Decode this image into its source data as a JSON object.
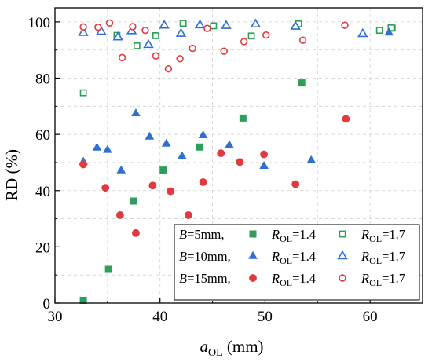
{
  "chart_data": {
    "type": "scatter",
    "xlabel": {
      "main": "a",
      "sub": "OL",
      "unit": " (mm)"
    },
    "ylabel": "RD (%)",
    "xlim": [
      30,
      65
    ],
    "ylim": [
      0,
      105
    ],
    "x_ticks": [
      30,
      40,
      50,
      60
    ],
    "y_ticks": [
      0,
      20,
      40,
      60,
      80,
      100
    ],
    "grid": true,
    "legend_placement": "bottom-right",
    "series": [
      {
        "name": "B=5mm, R_OL=1.4",
        "legend_group": "B=5mm,",
        "legend_label": {
          "main": "R",
          "sub": "OL",
          "value": "=1.4"
        },
        "marker": "square",
        "filled": true,
        "color": "#2e9e5b",
        "x": [
          32.7,
          35.1,
          37.5,
          40.3,
          43.8,
          47.9,
          53.5,
          62.1
        ],
        "y": [
          1,
          12,
          36.3,
          47.3,
          55.5,
          65.8,
          78.3,
          97.8
        ]
      },
      {
        "name": "B=5mm, R_OL=1.7",
        "legend_label": {
          "main": "R",
          "sub": "OL",
          "value": "=1.7"
        },
        "marker": "square",
        "filled": false,
        "color": "#2e9e5b",
        "x": [
          32.7,
          35.9,
          37.8,
          39.6,
          42.2,
          45.1,
          48.7,
          53.2,
          60.9,
          62.0
        ],
        "y": [
          74.8,
          95.2,
          91.5,
          95.1,
          99.5,
          98.6,
          95.0,
          99.3,
          97.0,
          97.9
        ]
      },
      {
        "name": "B=10mm, R_OL=1.4",
        "legend_group": "B=10mm,",
        "legend_label": {
          "main": "R",
          "sub": "OL",
          "value": "=1.4"
        },
        "marker": "triangle",
        "filled": true,
        "color": "#2f6fd3",
        "x": [
          32.7,
          34.0,
          35.0,
          36.3,
          37.7,
          39.0,
          40.6,
          42.1,
          44.1,
          46.6,
          49.9,
          54.4,
          61.8
        ],
        "y": [
          50.3,
          55.3,
          54.5,
          47.2,
          67.5,
          59.2,
          56.7,
          52.3,
          59.7,
          56.2,
          48.8,
          50.8,
          96.2
        ]
      },
      {
        "name": "B=10mm, R_OL=1.7",
        "legend_label": {
          "main": "R",
          "sub": "OL",
          "value": "=1.7"
        },
        "marker": "triangle",
        "filled": false,
        "color": "#2f6fd3",
        "x": [
          32.7,
          34.4,
          36.0,
          37.3,
          38.9,
          40.4,
          42.0,
          43.8,
          46.3,
          49.1,
          52.9,
          59.3
        ],
        "y": [
          96.2,
          96.6,
          94.6,
          96.8,
          91.9,
          98.8,
          95.9,
          98.9,
          98.7,
          99.2,
          98.4,
          95.8
        ]
      },
      {
        "name": "B=15mm, R_OL=1.4",
        "legend_group": "B=15mm,",
        "legend_label": {
          "main": "R",
          "sub": "OL",
          "value": "=1.4"
        },
        "marker": "circle",
        "filled": true,
        "color": "#e0393e",
        "x": [
          32.7,
          34.8,
          36.2,
          37.7,
          39.3,
          41.0,
          42.7,
          44.1,
          45.8,
          47.6,
          49.9,
          52.9,
          57.7
        ],
        "y": [
          49.3,
          41.0,
          31.3,
          24.9,
          41.8,
          39.8,
          31.3,
          43.0,
          53.3,
          50.2,
          52.9,
          42.3,
          65.5
        ]
      },
      {
        "name": "B=15mm, R_OL=1.7",
        "legend_label": {
          "main": "R",
          "sub": "OL",
          "value": "=1.7"
        },
        "marker": "circle",
        "filled": false,
        "color": "#e0393e",
        "x": [
          32.7,
          34.1,
          35.2,
          36.4,
          37.4,
          38.6,
          39.6,
          40.8,
          41.9,
          43.1,
          44.5,
          46.1,
          48.0,
          50.1,
          53.6,
          57.6
        ],
        "y": [
          98.2,
          98.1,
          99.6,
          87.3,
          98.3,
          97.0,
          87.9,
          83.3,
          86.9,
          90.6,
          97.7,
          89.6,
          93.0,
          95.3,
          93.5,
          98.8
        ]
      }
    ]
  }
}
